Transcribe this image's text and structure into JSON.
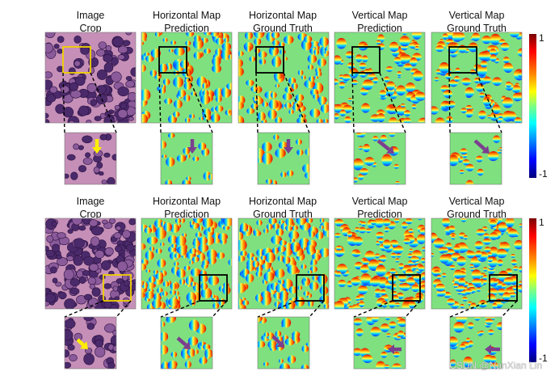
{
  "figure": {
    "columns": [
      {
        "title": "Image\nCrop"
      },
      {
        "title": "Horizontal Map\nPrediction"
      },
      {
        "title": "Horizontal Map\nGround Truth"
      },
      {
        "title": "Vertical Map\nPrediction"
      },
      {
        "title": "Vertical Map\nGround Truth"
      }
    ],
    "colorbar": {
      "max_label": "1",
      "min_label": "-1"
    },
    "colors": {
      "background_map": "#7fe07f",
      "highlight_box_image": "#f0d000",
      "highlight_box_map": "#000000",
      "arrow_image": "#ffee00",
      "arrow_map": "#7b3f8f",
      "tissue_pink": "#c58fb8",
      "nucleus_purple": "#4b2a6b"
    },
    "watermark": "CSDN @NanXian Lin"
  }
}
